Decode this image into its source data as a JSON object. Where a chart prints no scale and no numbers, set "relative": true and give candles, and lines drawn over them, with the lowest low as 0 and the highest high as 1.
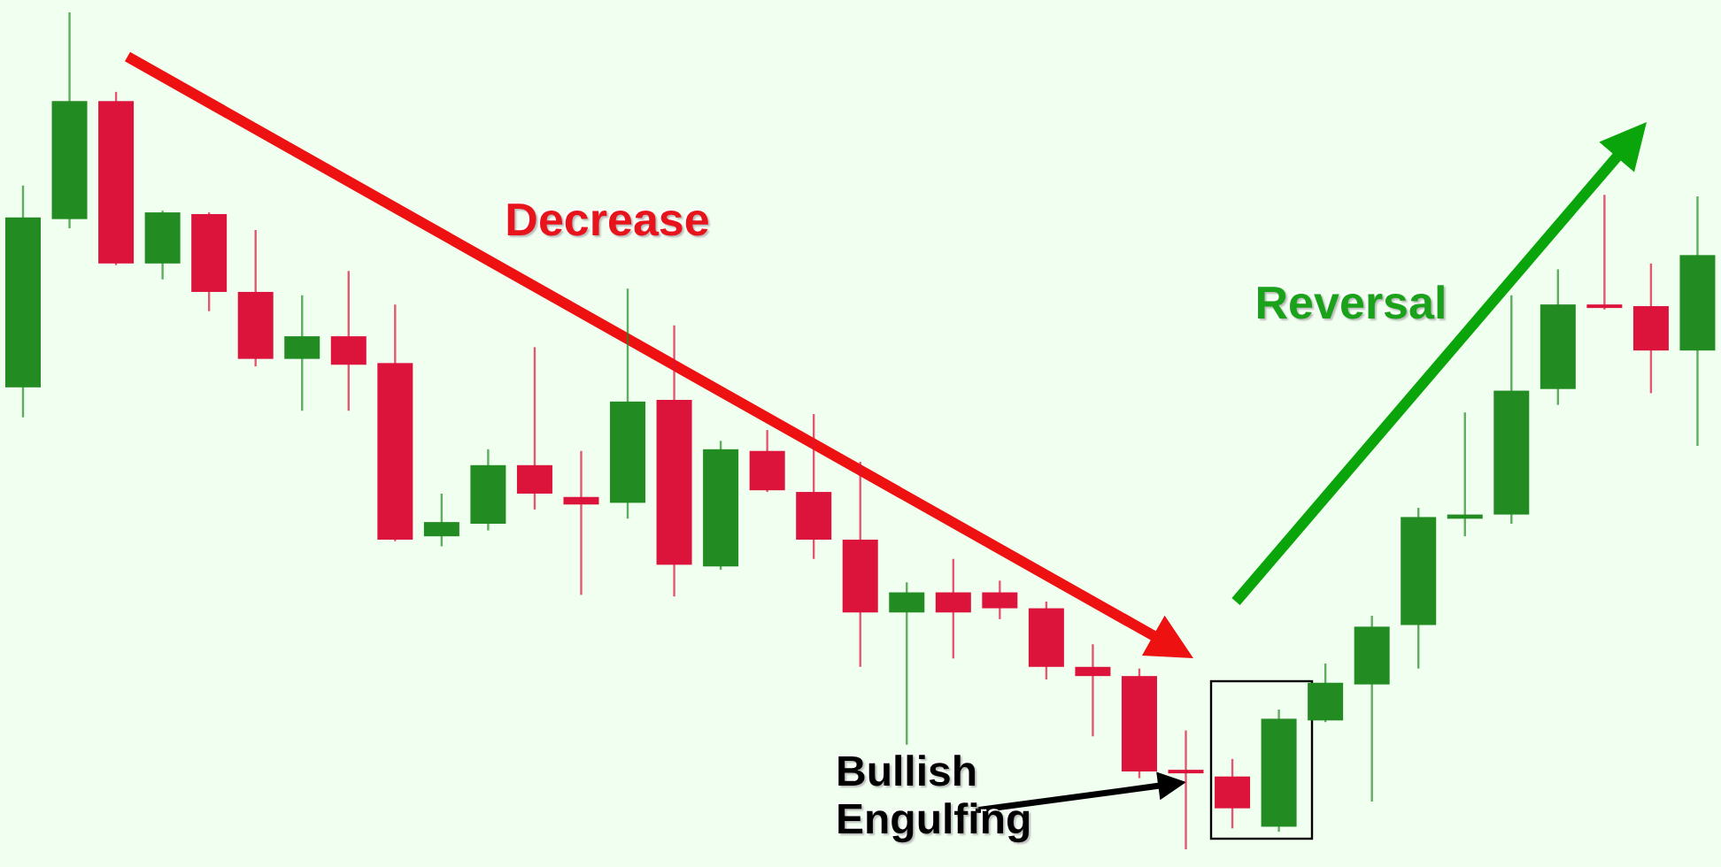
{
  "chart_data": {
    "type": "candlestick",
    "relative": true,
    "categories": [
      null,
      null,
      null,
      null,
      null,
      null,
      null,
      null,
      null,
      null,
      null,
      null,
      null,
      null,
      null,
      null,
      null,
      null,
      null,
      null,
      null,
      null,
      null,
      null,
      null,
      null,
      null,
      null,
      null,
      null,
      null,
      null,
      null,
      null,
      null,
      null,
      null
    ],
    "ohlc": [
      [
        0.552,
        0.793,
        0.516,
        0.755
      ],
      [
        0.753,
        1,
        0.742,
        0.894
      ],
      [
        0.894,
        0.905,
        0.698,
        0.7
      ],
      [
        0.7,
        0.763,
        0.681,
        0.761
      ],
      [
        0.759,
        0.761,
        0.643,
        0.666
      ],
      [
        0.666,
        0.74,
        0.577,
        0.586
      ],
      [
        0.586,
        0.662,
        0.524,
        0.613
      ],
      [
        0.613,
        0.691,
        0.524,
        0.579
      ],
      [
        0.581,
        0.651,
        0.368,
        0.37
      ],
      [
        0.374,
        0.425,
        0.362,
        0.391
      ],
      [
        0.389,
        0.478,
        0.381,
        0.459
      ],
      [
        0.459,
        0.6,
        0.406,
        0.425
      ],
      [
        0.421,
        0.476,
        0.304,
        0.412
      ],
      [
        0.414,
        0.67,
        0.395,
        0.535
      ],
      [
        0.537,
        0.626,
        0.302,
        0.34
      ],
      [
        0.338,
        0.488,
        0.334,
        0.478
      ],
      [
        0.476,
        0.501,
        0.427,
        0.429
      ],
      [
        0.427,
        0.52,
        0.347,
        0.37
      ],
      [
        0.37,
        0.463,
        0.218,
        0.283
      ],
      [
        0.283,
        0.319,
        0.125,
        0.307
      ],
      [
        0.307,
        0.347,
        0.228,
        0.283
      ],
      [
        0.307,
        0.321,
        0.275,
        0.288
      ],
      [
        0.288,
        0.296,
        0.203,
        0.218
      ],
      [
        0.218,
        0.245,
        0.135,
        0.207
      ],
      [
        0.207,
        0.216,
        0.085,
        0.093
      ],
      [
        0.095,
        0.142,
        0,
        0.091
      ],
      [
        0.087,
        0.108,
        0.025,
        0.049
      ],
      [
        0.027,
        0.167,
        0.021,
        0.156
      ],
      [
        0.154,
        0.222,
        0.152,
        0.199
      ],
      [
        0.197,
        0.279,
        0.057,
        0.266
      ],
      [
        0.268,
        0.408,
        0.216,
        0.397
      ],
      [
        0.395,
        0.522,
        0.374,
        0.4
      ],
      [
        0.4,
        0.662,
        0.389,
        0.548
      ],
      [
        0.55,
        0.693,
        0.531,
        0.651
      ],
      [
        0.651,
        0.782,
        0.645,
        0.647
      ],
      [
        0.649,
        0.7,
        0.545,
        0.596
      ],
      [
        0.596,
        0.78,
        0.482,
        0.71
      ]
    ],
    "colors": [
      "#228b22",
      "#228b22",
      "#dc143c",
      "#228b22",
      "#dc143c",
      "#dc143c",
      "#228b22",
      "#dc143c",
      "#dc143c",
      "#228b22",
      "#228b22",
      "#dc143c",
      "#dc143c",
      "#228b22",
      "#dc143c",
      "#228b22",
      "#dc143c",
      "#dc143c",
      "#dc143c",
      "#228b22",
      "#dc143c",
      "#dc143c",
      "#dc143c",
      "#dc143c",
      "#dc143c",
      "#dc143c",
      "#dc143c",
      "#228b22",
      "#228b22",
      "#228b22",
      "#228b22",
      "#228b22",
      "#228b22",
      "#228b22",
      "#dc143c",
      "#dc143c",
      "#228b22"
    ],
    "annotations": [
      "Decrease",
      "Reversal",
      "Bullish Engulfing"
    ]
  }
}
